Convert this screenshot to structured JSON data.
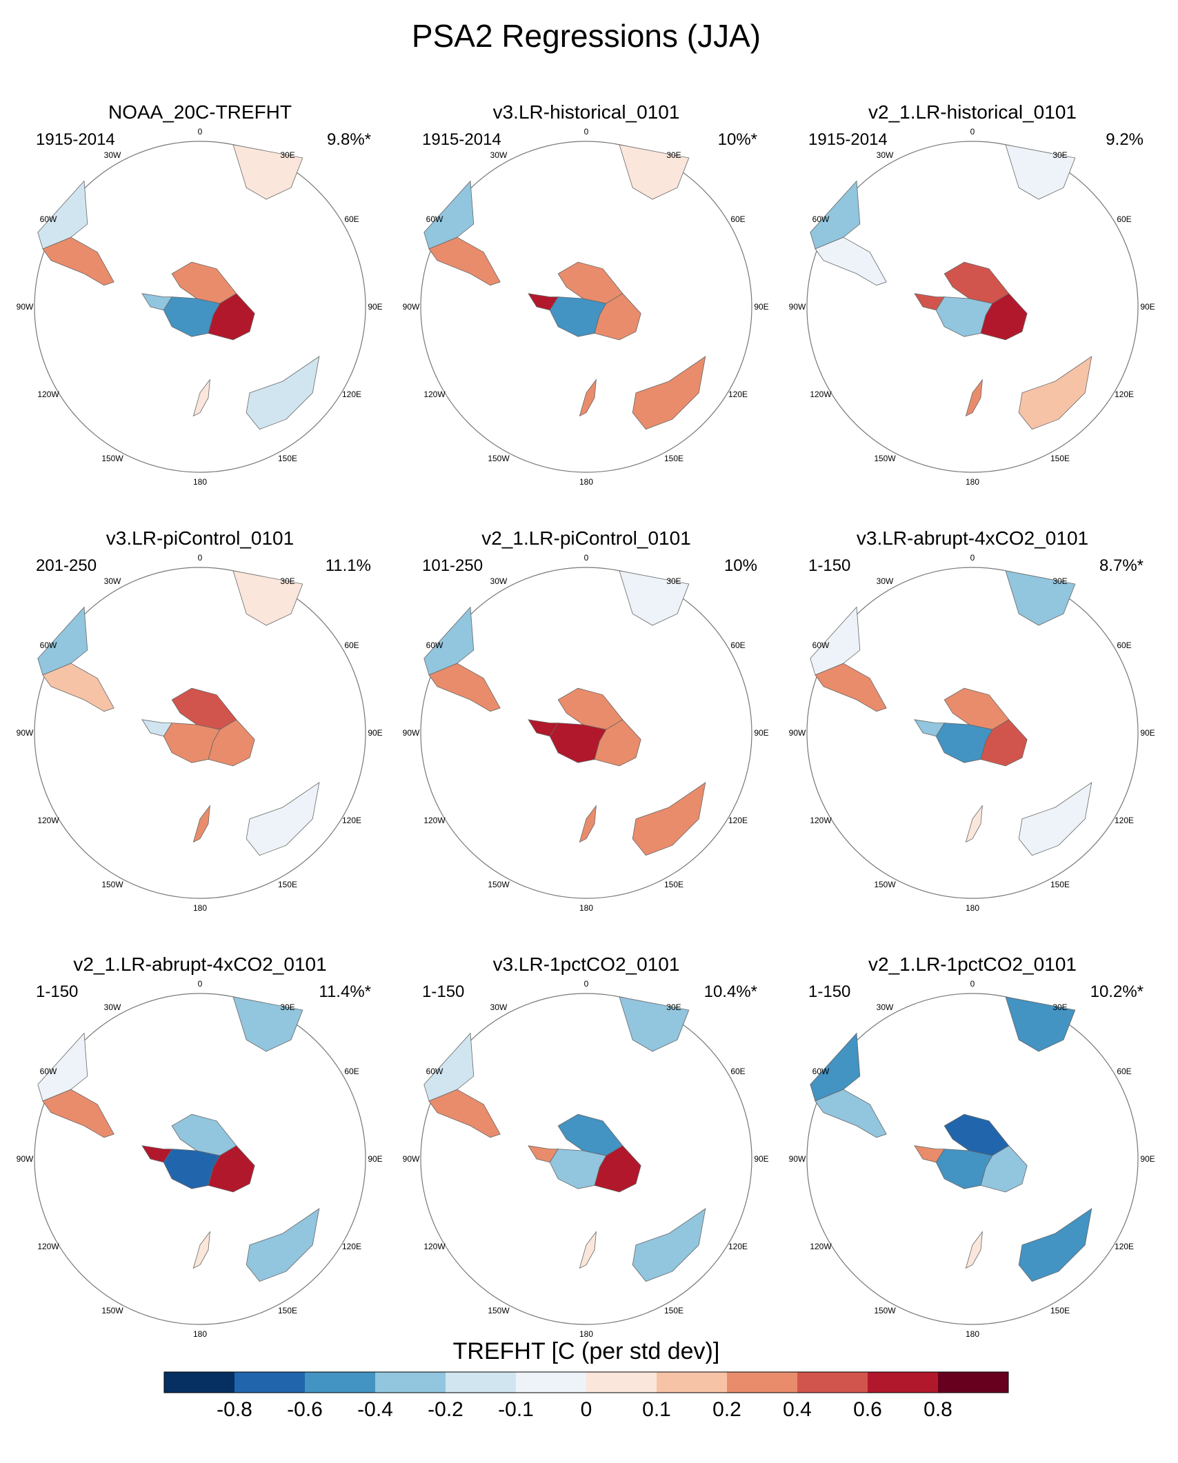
{
  "chart_data": {
    "type": "polar-stereographic map grid",
    "title": "PSA2 Regressions (JJA)",
    "rows": 3,
    "cols": 3,
    "lon_labels": [
      "0",
      "30E",
      "60E",
      "90E",
      "120E",
      "150E",
      "180",
      "150W",
      "120W",
      "90W",
      "60W",
      "30W"
    ],
    "panels": [
      {
        "title": "NOAA_20C-TREFHT",
        "period": "1915-2014",
        "variance_explained": "9.8%*",
        "values": {
          "antarctica_west": -0.6,
          "antarctica_peninsula": -0.4,
          "antarctica_east": 0.6,
          "antarctica_north": 0.2,
          "south_america_south": 0.3,
          "south_america_west": -0.2,
          "africa": 0.05,
          "australia": -0.2,
          "new_zealand": 0.0
        }
      },
      {
        "title": "v3.LR-historical_0101",
        "period": "1915-2014",
        "variance_explained": "10%*",
        "values": {
          "antarctica_west": -0.5,
          "antarctica_peninsula": 0.6,
          "antarctica_east": 0.2,
          "antarctica_north": 0.2,
          "south_america_south": 0.2,
          "south_america_west": -0.3,
          "africa": 0.05,
          "australia": 0.3,
          "new_zealand": 0.2
        }
      },
      {
        "title": "v2_1.LR-historical_0101",
        "period": "1915-2014",
        "variance_explained": "9.2%",
        "values": {
          "antarctica_west": -0.3,
          "antarctica_peninsula": 0.4,
          "antarctica_east": 0.6,
          "antarctica_north": 0.4,
          "south_america_south": -0.1,
          "south_america_west": -0.4,
          "africa": -0.05,
          "australia": 0.1,
          "new_zealand": 0.2
        }
      },
      {
        "title": "v3.LR-piControl_0101",
        "period": "201-250",
        "variance_explained": "11.1%",
        "values": {
          "antarctica_west": 0.2,
          "antarctica_peninsula": -0.2,
          "antarctica_east": 0.3,
          "antarctica_north": 0.4,
          "south_america_south": 0.1,
          "south_america_west": -0.3,
          "africa": 0.05,
          "australia": -0.1,
          "new_zealand": 0.2
        }
      },
      {
        "title": "v2_1.LR-piControl_0101",
        "period": "101-250",
        "variance_explained": "10%",
        "values": {
          "antarctica_west": 0.6,
          "antarctica_peninsula": 0.6,
          "antarctica_east": 0.3,
          "antarctica_north": 0.2,
          "south_america_south": 0.2,
          "south_america_west": -0.4,
          "africa": -0.05,
          "australia": 0.3,
          "new_zealand": 0.2
        }
      },
      {
        "title": "v3.LR-abrupt-4xCO2_0101",
        "period": "1-150",
        "variance_explained": "8.7%*",
        "values": {
          "antarctica_west": -0.6,
          "antarctica_peninsula": -0.3,
          "antarctica_east": 0.4,
          "antarctica_north": 0.3,
          "south_america_south": 0.2,
          "south_america_west": -0.1,
          "africa": -0.3,
          "australia": -0.1,
          "new_zealand": 0.0
        }
      },
      {
        "title": "v2_1.LR-abrupt-4xCO2_0101",
        "period": "1-150",
        "variance_explained": "11.4%*",
        "values": {
          "antarctica_west": -0.7,
          "antarctica_peninsula": 0.7,
          "antarctica_east": 0.6,
          "antarctica_north": -0.3,
          "south_america_south": 0.3,
          "south_america_west": -0.05,
          "africa": -0.3,
          "australia": -0.3,
          "new_zealand": 0.0
        }
      },
      {
        "title": "v3.LR-1pctCO2_0101",
        "period": "1-150",
        "variance_explained": "10.4%*",
        "values": {
          "antarctica_west": -0.4,
          "antarctica_peninsula": 0.3,
          "antarctica_east": 0.6,
          "antarctica_north": -0.5,
          "south_america_south": 0.2,
          "south_america_west": -0.2,
          "africa": -0.4,
          "australia": -0.3,
          "new_zealand": 0.0
        }
      },
      {
        "title": "v2_1.LR-1pctCO2_0101",
        "period": "1-150",
        "variance_explained": "10.2%*",
        "values": {
          "antarctica_west": -0.6,
          "antarctica_peninsula": 0.3,
          "antarctica_east": -0.4,
          "antarctica_north": -0.7,
          "south_america_south": -0.3,
          "south_america_west": -0.5,
          "africa": -0.5,
          "australia": -0.5,
          "new_zealand": 0.0
        }
      }
    ],
    "colorbar": {
      "title": "TREFHT [C (per std dev)]",
      "tick_labels": [
        "-0.8",
        "-0.6",
        "-0.4",
        "-0.2",
        "-0.1",
        "0",
        "0.1",
        "0.2",
        "0.4",
        "0.6",
        "0.8"
      ],
      "colors": [
        "#053061",
        "#2166ac",
        "#4393c3",
        "#92c5de",
        "#d1e5f0",
        "#edf3f8",
        "#fbe6db",
        "#f6c3a7",
        "#e98c6b",
        "#d1554c",
        "#b2182b",
        "#67001f"
      ]
    }
  }
}
